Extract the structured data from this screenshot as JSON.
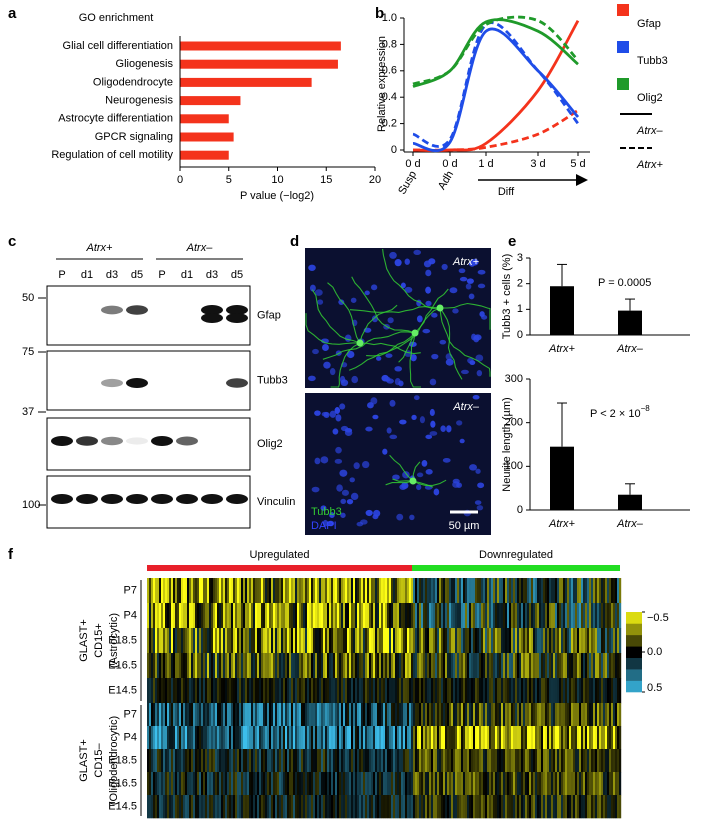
{
  "panel_labels": [
    "a",
    "b",
    "c",
    "d",
    "e",
    "f"
  ],
  "chart_data": [
    {
      "type": "hbar",
      "title": "GO enrichment",
      "categories": [
        "Glial cell differentiation",
        "Gliogenesis",
        "Oligodendrocyte",
        "Neurogenesis",
        "Astrocyte differentiation",
        "GPCR signaling",
        "Regulation of cell motility"
      ],
      "values": [
        16.5,
        16.2,
        13.5,
        6.2,
        5.0,
        5.5,
        5.0
      ],
      "color": "#f4331c",
      "xlim": [
        0,
        20
      ],
      "xticks": [
        0,
        5,
        10,
        15,
        20
      ],
      "x_label": "P value (−log2)"
    },
    {
      "type": "line",
      "y_label": "Relative expression",
      "categories": [
        "0 d",
        "0 d",
        "1 d",
        "3 d",
        "5 d"
      ],
      "stage_labels": [
        "Susp",
        "Adh",
        "Diff"
      ],
      "ylim": [
        0,
        1
      ],
      "yticks": [
        0,
        0.2,
        0.4,
        0.6,
        0.8,
        {
          "value": 1,
          "label": "1.0"
        }
      ],
      "series": [
        {
          "name": "Gfap",
          "color": "#f4331c",
          "values": [
            0,
            0,
            0.05,
            0.45,
            0.98
          ],
          "dashed_values": [
            0,
            0,
            0.02,
            0.12,
            0.3
          ]
        },
        {
          "name": "Tubb3",
          "color": "#1f4de8",
          "values": [
            0.05,
            0.06,
            0.9,
            0.6,
            0.25
          ],
          "dashed_values": [
            0.12,
            0.08,
            0.95,
            0.6,
            0.2
          ]
        },
        {
          "name": "Olig2",
          "color": "#1f9a2a",
          "values": [
            0.48,
            0.6,
            0.97,
            0.9,
            0.65
          ],
          "dashed_values": [
            0.5,
            0.6,
            0.95,
            0.98,
            0.68
          ]
        }
      ],
      "line_styles": [
        {
          "name": "Atrx–",
          "dashed": false
        },
        {
          "name": "Atrx+",
          "dashed": true
        }
      ]
    },
    {
      "type": "bar",
      "y_label": "Tubb3 + cells (%)",
      "categories": [
        "Atrx+",
        "Atrx–"
      ],
      "values": [
        1.9,
        0.95
      ],
      "errors": [
        0.85,
        0.45
      ],
      "color": "#000000",
      "ylim": [
        0,
        3
      ],
      "yticks": [
        0,
        1,
        2,
        3
      ],
      "annotation": "P = 0.0005"
    },
    {
      "type": "bar",
      "y_label": "Neurite length (µm)",
      "categories": [
        "Atrx+",
        "Atrx–"
      ],
      "values": [
        145,
        35
      ],
      "errors": [
        100,
        25
      ],
      "color": "#000000",
      "ylim": [
        0,
        300
      ],
      "yticks": [
        0,
        100,
        200,
        300
      ],
      "annotation": "P < 2 × 10",
      "annotation_superscript": "−8"
    },
    {
      "type": "heatmap",
      "column_groups": [
        {
          "name": "Upregulated",
          "color": "#e8202a"
        },
        {
          "name": "Downregulated",
          "color": "#22dd22"
        }
      ],
      "row_groups": [
        {
          "name": [
            "GLAST+",
            "CD15+",
            "(Astrocytic)"
          ],
          "rows": [
            "P7",
            "P4",
            "E18.5",
            "E16.5",
            "E14.5"
          ]
        },
        {
          "name": [
            "GLAST+",
            "CD15–",
            "(Oligodendrocytic)"
          ],
          "rows": [
            "P7",
            "P4",
            "E18.5",
            "E16.5",
            "E14.5"
          ]
        }
      ],
      "colorbar_lim": [
        -0.5,
        0.5
      ],
      "colorbar_ticks": [
        {
          "value": -0.5,
          "label": "−0.5"
        },
        {
          "value": 0,
          "label": "0.0"
        },
        0.5
      ]
    }
  ],
  "blot": {
    "groups": [
      "Atrx+",
      "Atrx–"
    ],
    "lanes": [
      "P",
      "d1",
      "d3",
      "d5",
      "P",
      "d1",
      "d3",
      "d5"
    ],
    "markers": [
      50,
      75,
      37,
      100
    ],
    "proteins": [
      "Gfap",
      "Tubb3",
      "Olig2",
      "Vinculin"
    ]
  },
  "micrograph": {
    "panels": [
      "Atrx+",
      "Atrx–"
    ],
    "stains": [
      {
        "name": "Tubb3",
        "color": "#33cc33"
      },
      {
        "name": "DAPI",
        "color": "#3344ff"
      }
    ],
    "scale_bar": "50 µm"
  }
}
